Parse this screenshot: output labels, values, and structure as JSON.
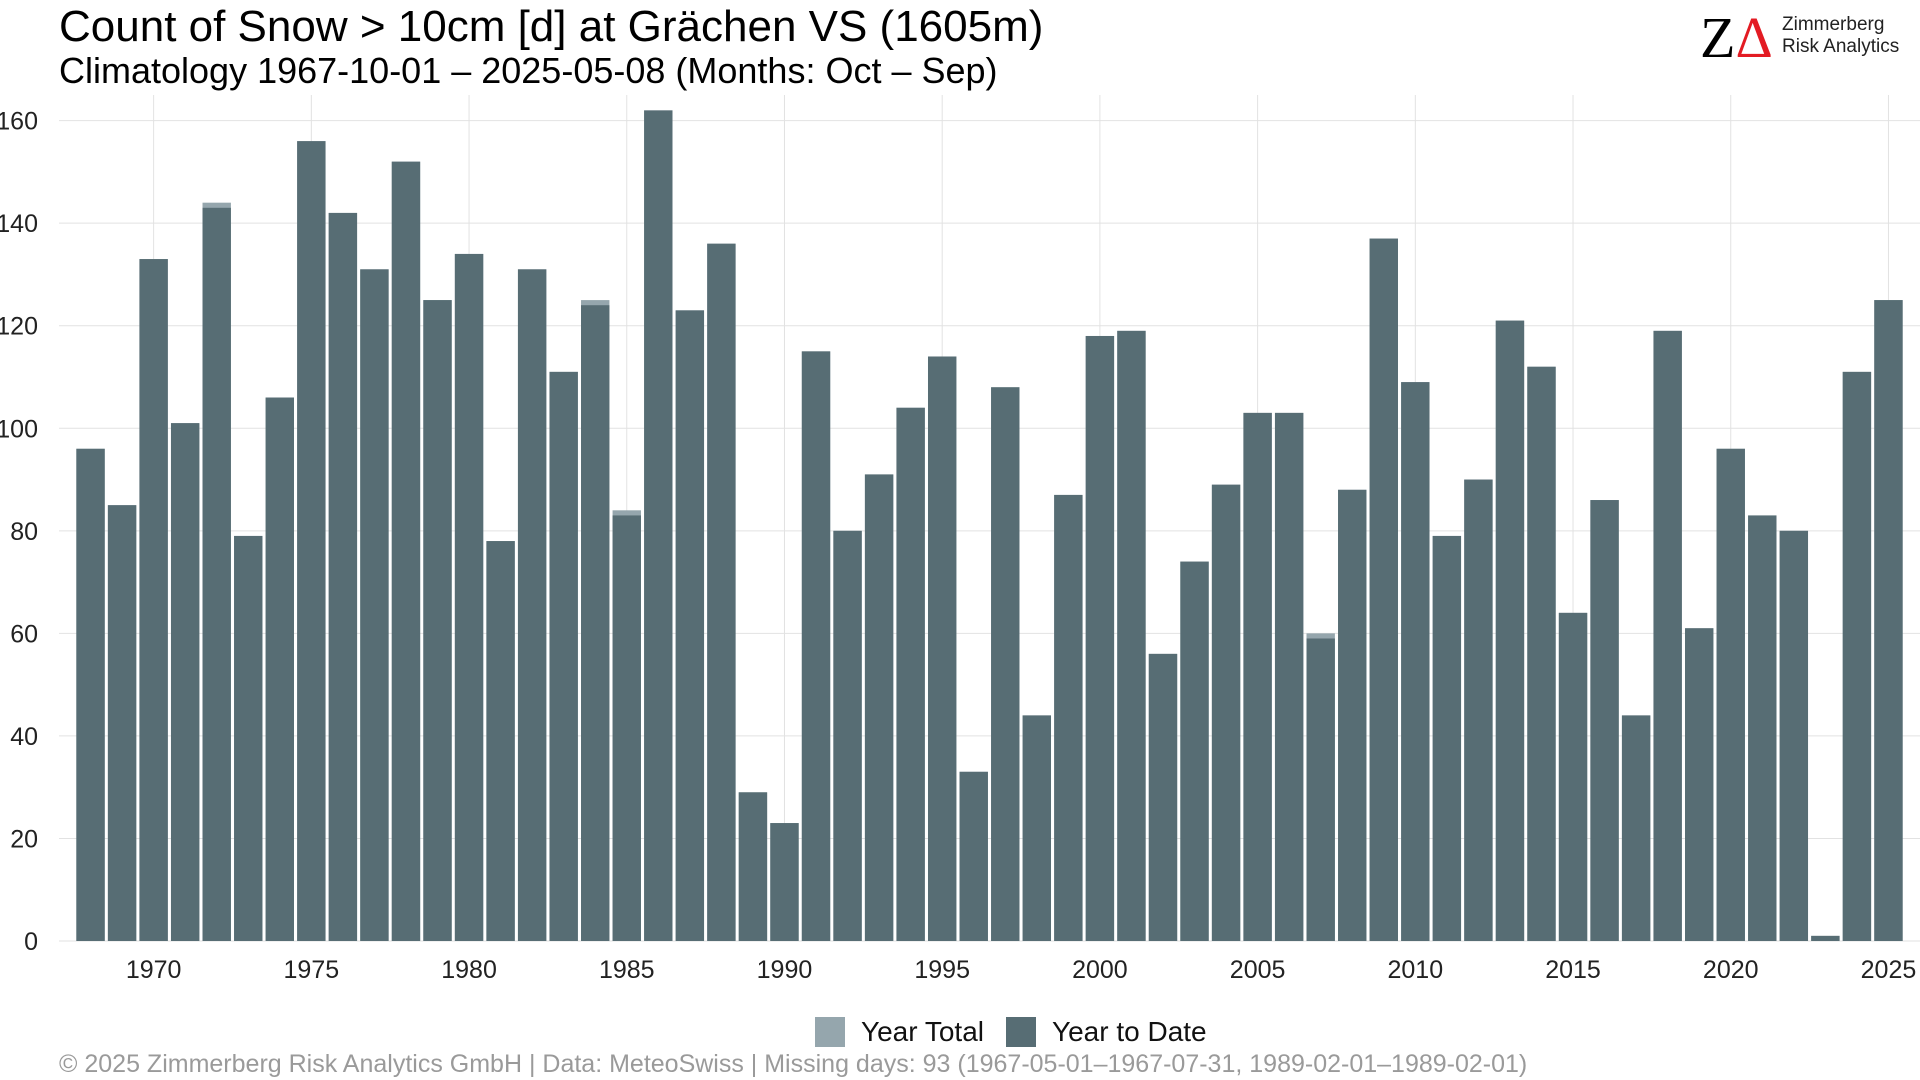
{
  "chart_data": {
    "type": "bar",
    "title": "Count of Snow > 10cm [d] at Grächen  VS (1605m)",
    "subtitle": "Climatology 1967-10-01 – 2025-05-08 (Months: Oct – Sep)",
    "xlabel": "",
    "ylabel": "",
    "ylim": [
      0,
      165
    ],
    "xlim": [
      1967,
      2026
    ],
    "yticks": [
      0,
      20,
      40,
      60,
      80,
      100,
      120,
      140,
      160
    ],
    "xticks": [
      1970,
      1975,
      1980,
      1985,
      1990,
      1995,
      2000,
      2005,
      2010,
      2015,
      2020,
      2025
    ],
    "grid": true,
    "legend_position": "bottom",
    "categories": [
      1968,
      1969,
      1970,
      1971,
      1972,
      1973,
      1974,
      1975,
      1976,
      1977,
      1978,
      1979,
      1980,
      1981,
      1982,
      1983,
      1984,
      1985,
      1986,
      1987,
      1988,
      1989,
      1990,
      1991,
      1992,
      1993,
      1994,
      1995,
      1996,
      1997,
      1998,
      1999,
      2000,
      2001,
      2002,
      2003,
      2004,
      2005,
      2006,
      2007,
      2008,
      2009,
      2010,
      2011,
      2012,
      2013,
      2014,
      2015,
      2016,
      2017,
      2018,
      2019,
      2020,
      2021,
      2022,
      2023,
      2024,
      2025
    ],
    "series": [
      {
        "name": "Year Total",
        "color": "#95a6ad",
        "values": [
          96,
          85,
          133,
          101,
          144,
          79,
          106,
          156,
          142,
          131,
          152,
          125,
          134,
          78,
          131,
          111,
          125,
          84,
          162,
          123,
          136,
          29,
          23,
          115,
          80,
          91,
          104,
          114,
          33,
          108,
          44,
          87,
          118,
          119,
          56,
          74,
          89,
          103,
          103,
          60,
          88,
          137,
          109,
          79,
          90,
          121,
          112,
          64,
          86,
          44,
          119,
          61,
          96,
          83,
          80,
          1,
          111,
          125
        ]
      },
      {
        "name": "Year to Date",
        "color": "#576d74",
        "values": [
          96,
          85,
          133,
          101,
          143,
          79,
          106,
          156,
          142,
          131,
          152,
          125,
          134,
          78,
          131,
          111,
          124,
          83,
          162,
          123,
          136,
          29,
          23,
          115,
          80,
          91,
          104,
          114,
          33,
          108,
          44,
          87,
          118,
          119,
          56,
          74,
          89,
          103,
          103,
          59,
          88,
          137,
          109,
          79,
          90,
          121,
          112,
          64,
          86,
          44,
          119,
          61,
          96,
          83,
          80,
          1,
          111,
          125
        ]
      }
    ]
  },
  "logo": {
    "mark_z": "Z",
    "mark_delta": "Δ",
    "line1": "Zimmerberg",
    "line2": "Risk Analytics"
  },
  "caption": "©  2025 Zimmerberg Risk Analytics GmbH | Data: MeteoSwiss | Missing days: 93 (1967-05-01–1967-07-31, 1989-02-01–1989-02-01)"
}
